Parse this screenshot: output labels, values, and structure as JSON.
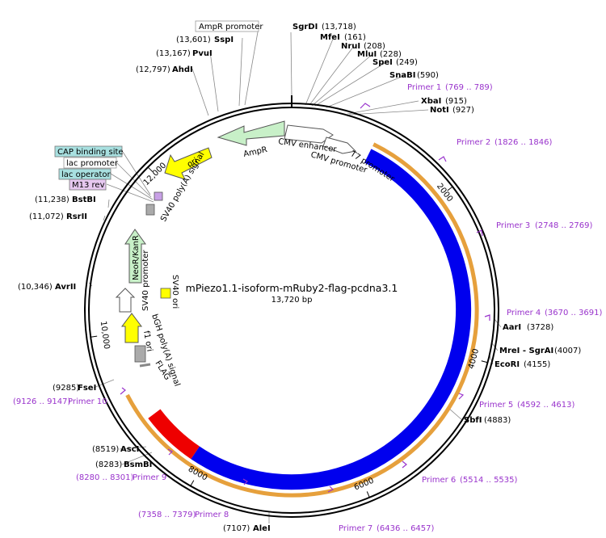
{
  "plasmid": {
    "name": "mPiezo1.1-isoform-mRuby2-flag-pcdna3.1",
    "size_label": "13,720 bp",
    "length": 13720
  },
  "colors": {
    "backbone": "#000000",
    "piezo": "#0000ee",
    "mruby": "#ee0000",
    "primer": "#9933cc",
    "yellow": "#ffff00",
    "green": "#c8f0c8",
    "white": "#ffffff",
    "gray": "#aaaaaa",
    "orange": "#e6a03c"
  },
  "sites": [
    {
      "name": "SgrDI",
      "pos": "(13,718)",
      "bold": true
    },
    {
      "name": "MfeI",
      "pos": "(161)",
      "bold": true
    },
    {
      "name": "NruI",
      "pos": "(208)",
      "bold": true
    },
    {
      "name": "MluI",
      "pos": "(228)",
      "bold": true
    },
    {
      "name": "SpeI",
      "pos": "(249)",
      "bold": true
    },
    {
      "name": "SnaBI",
      "pos": "(590)",
      "bold": true
    },
    {
      "name": "XbaI",
      "pos": "(915)",
      "bold": true
    },
    {
      "name": "NotI",
      "pos": "(927)",
      "bold": true
    },
    {
      "name": "AarI",
      "pos": "(3728)",
      "bold": true
    },
    {
      "name": "MreI - SgrAI",
      "pos": "(4007)",
      "bold": true
    },
    {
      "name": "EcoRI",
      "pos": "(4155)",
      "bold": true
    },
    {
      "name": "SbfI",
      "pos": "(4883)",
      "bold": true
    },
    {
      "name": "AleI",
      "pos": "(7107)",
      "bold": true
    },
    {
      "name": "BsmBI",
      "pos": "(8283)",
      "bold": true
    },
    {
      "name": "AscI",
      "pos": "(8519)",
      "bold": true
    },
    {
      "name": "FseI",
      "pos": "(9285)",
      "bold": true
    },
    {
      "name": "AvrII",
      "pos": "(10,346)",
      "bold": true
    },
    {
      "name": "RsrII",
      "pos": "(11,072)",
      "bold": true
    },
    {
      "name": "BstBI",
      "pos": "(11,238)",
      "bold": true
    },
    {
      "name": "AhdI",
      "pos": "(12,797)",
      "bold": true
    },
    {
      "name": "PvuI",
      "pos": "(13,167)",
      "bold": true
    },
    {
      "name": "SspI",
      "pos": "(13,601)",
      "bold": true
    }
  ],
  "primers": [
    {
      "name": "Primer 1",
      "range": "(769 .. 789)"
    },
    {
      "name": "Primer 2",
      "range": "(1826 .. 1846)"
    },
    {
      "name": "Primer 3",
      "range": "(2748 .. 2769)"
    },
    {
      "name": "Primer 4",
      "range": "(3670 .. 3691)"
    },
    {
      "name": "Primer 5",
      "range": "(4592 .. 4613)"
    },
    {
      "name": "Primer 6",
      "range": "(5514 .. 5535)"
    },
    {
      "name": "Primer 7",
      "range": "(6436 .. 6457)"
    },
    {
      "name": "Primer 8",
      "range": "(7358 .. 7379)"
    },
    {
      "name": "Primer 9",
      "range": "(8280 .. 8301)"
    },
    {
      "name": "Primer 10",
      "range": "(9126 .. 9147)"
    }
  ],
  "boxed_labels": {
    "ampr_promoter": "AmpR promoter",
    "cap_binding_site": "CAP binding site",
    "lac_promoter": "lac promoter",
    "lac_operator": "lac operator",
    "m13_rev": "M13 rev"
  },
  "features": {
    "cmv_enhancer": "CMV enhancer",
    "cmv_promoter": "CMV promoter",
    "t7_promoter": "T7 promoter",
    "mpiezo": "mPiezo1.1",
    "mruby": "mRuby2",
    "flag": "FLAG",
    "bgh": "bGH poly(A) signal",
    "f1_ori": "f1 ori",
    "sv40_promoter": "SV40 promoter",
    "sv40_ori": "SV40 ori",
    "neor": "NeoR/KanR",
    "sv40_polya": "SV40 poly(A) signal",
    "ori": "ori",
    "ampr": "AmpR"
  },
  "ticks": [
    "2000",
    "4000",
    "6000",
    "8000",
    "10,000",
    "12,000"
  ]
}
